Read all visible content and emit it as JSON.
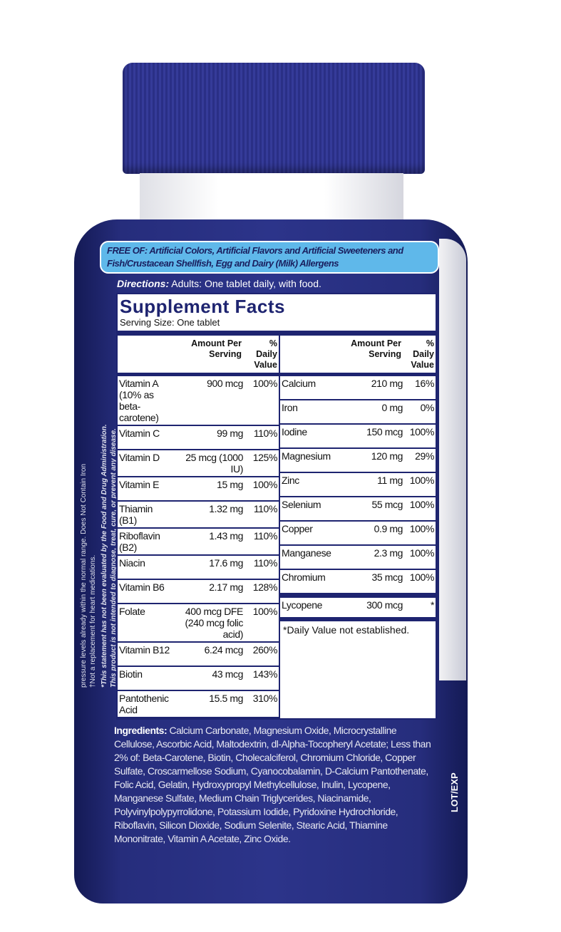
{
  "free_of": {
    "label": "FREE OF:",
    "text": "Artificial Colors, Artificial Flavors and Artificial Sweeteners and Fish/Crustacean Shellfish, Egg and Dairy (Milk) Allergens"
  },
  "directions": {
    "label": "Directions:",
    "text": "Adults: One tablet daily, with food."
  },
  "facts": {
    "title": "Supplement Facts",
    "serving": "Serving Size: One tablet",
    "h_amount": "Amount Per Serving",
    "h_dv": "% Daily Value",
    "left": [
      {
        "n": "Vitamin A (10% as beta-carotene)",
        "a": "900 mcg",
        "p": "100%"
      },
      {
        "n": "Vitamin C",
        "a": "99 mg",
        "p": "110%"
      },
      {
        "n": "Vitamin D",
        "a": "25 mcg (1000 IU)",
        "p": "125%"
      },
      {
        "n": "Vitamin E",
        "a": "15 mg",
        "p": "100%"
      },
      {
        "n": "Thiamin (B1)",
        "a": "1.32 mg",
        "p": "110%"
      },
      {
        "n": "Riboflavin (B2)",
        "a": "1.43 mg",
        "p": "110%"
      },
      {
        "n": "Niacin",
        "a": "17.6 mg",
        "p": "110%"
      },
      {
        "n": "Vitamin B6",
        "a": "2.17 mg",
        "p": "128%"
      },
      {
        "n": "Folate",
        "a": "400 mcg DFE (240 mcg folic acid)",
        "p": "100%"
      },
      {
        "n": "Vitamin B12",
        "a": "6.24 mcg",
        "p": "260%"
      },
      {
        "n": "Biotin",
        "a": "43 mcg",
        "p": "143%"
      },
      {
        "n": "Pantothenic Acid",
        "a": "15.5 mg",
        "p": "310%"
      }
    ],
    "right": [
      {
        "n": "Calcium",
        "a": "210 mg",
        "p": "16%"
      },
      {
        "n": "Iron",
        "a": "0 mg",
        "p": "0%"
      },
      {
        "n": "Iodine",
        "a": "150 mcg",
        "p": "100%"
      },
      {
        "n": "Magnesium",
        "a": "120 mg",
        "p": "29%"
      },
      {
        "n": "Zinc",
        "a": "11 mg",
        "p": "100%"
      },
      {
        "n": "Selenium",
        "a": "55 mcg",
        "p": "100%"
      },
      {
        "n": "Copper",
        "a": "0.9 mg",
        "p": "100%"
      },
      {
        "n": "Manganese",
        "a": "2.3 mg",
        "p": "100%"
      },
      {
        "n": "Chromium",
        "a": "35 mcg",
        "p": "100%"
      },
      {
        "n": "Lycopene",
        "a": "300 mcg",
        "p": "*"
      }
    ],
    "footnote": "*Daily Value not established."
  },
  "ingredients": {
    "label": "Ingredients:",
    "text": "Calcium Carbonate, Magnesium Oxide, Microcrystalline Cellulose, Ascorbic Acid, Maltodextrin, dl-Alpha-Tocopheryl Acetate; Less than 2% of: Beta-Carotene, Biotin, Cholecalciferol, Chromium Chloride, Copper Sulfate, Croscarmellose Sodium, Cyanocobalamin, D-Calcium Pantothenate, Folic Acid, Gelatin, Hydroxypropyl Methylcellulose, Inulin, Lycopene, Manganese Sulfate, Medium Chain Triglycerides, Niacinamide, Polyvinylpolypyrrolidone, Potassium Iodide, Pyridoxine Hydrochloride, Riboflavin, Silicon Dioxide, Sodium Selenite, Stearic Acid, Thiamine Mononitrate, Vitamin A Acetate, Zinc Oxide."
  },
  "side": {
    "disclaimer1": "*This statement has not been evaluated by the Food and Drug Administration.",
    "disclaimer2": "This product is not intended to diagnose, treat, cure, or prevent any disease.",
    "note1": "†Not a replacement for heart medications.",
    "note2": "pressure levels already within the normal range.   Does Not Contain Iron"
  },
  "lot": "LOT/EXP",
  "colors": {
    "bottle": "#2c348a",
    "cap": "#2a2f86",
    "banner": "#5fb8ea"
  }
}
